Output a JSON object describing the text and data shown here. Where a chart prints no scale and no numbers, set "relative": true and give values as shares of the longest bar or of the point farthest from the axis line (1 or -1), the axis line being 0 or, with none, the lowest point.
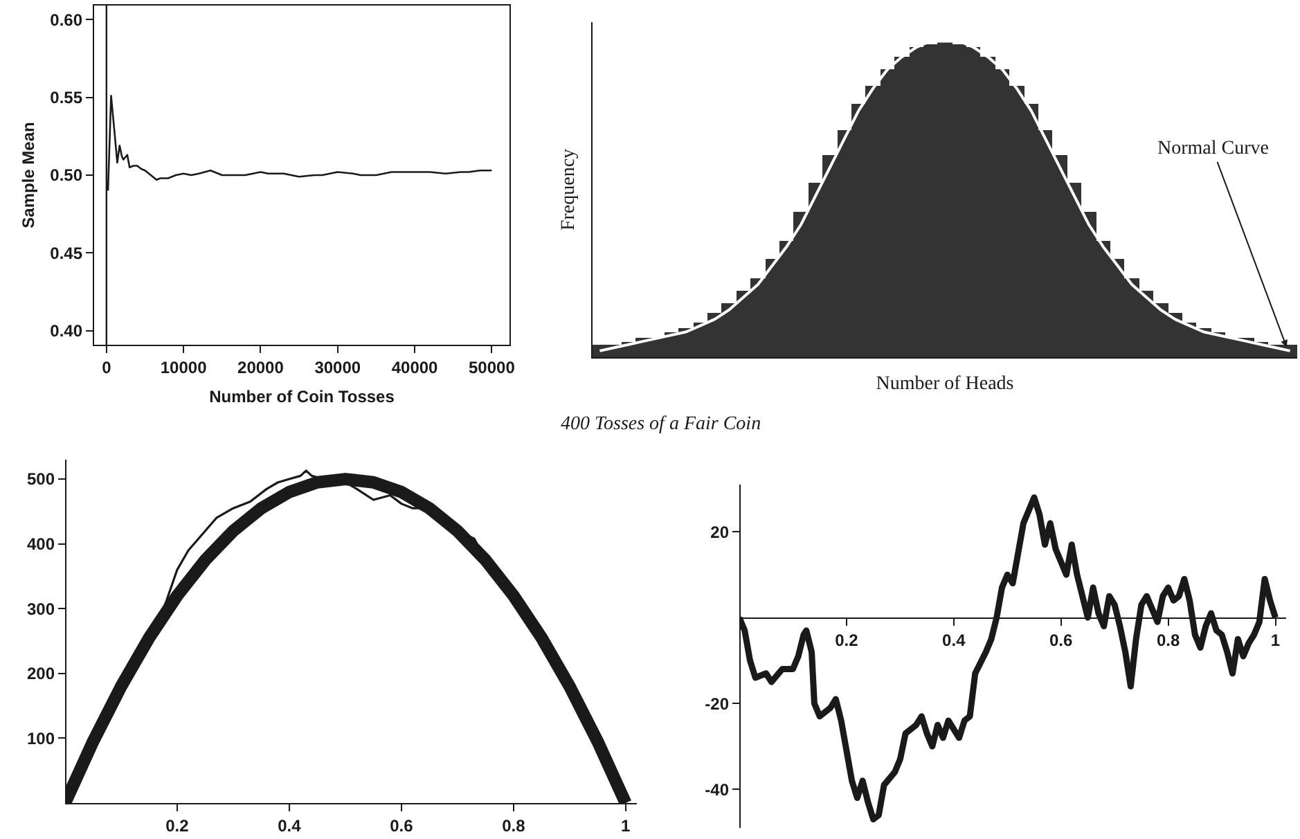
{
  "chart_data": [
    {
      "type": "line",
      "xlabel": "Number of Coin Tosses",
      "ylabel": "Sample Mean",
      "xlim": [
        -1600,
        52300
      ],
      "ylim": [
        0.391,
        0.609
      ],
      "xticks": [
        0,
        10000,
        20000,
        30000,
        40000,
        50000
      ],
      "yticks": [
        {
          "value": 0.4,
          "label": "0.40"
        },
        0.45,
        {
          "value": 0.5,
          "label": "0.50"
        },
        0.55,
        {
          "value": 0.6,
          "label": "0.60"
        }
      ],
      "ref_lines": [
        {
          "axis": "x",
          "value": 0,
          "color": "#1a1a1a"
        }
      ],
      "series": [
        {
          "color": "#1a1a1a",
          "x": [
            200,
            600,
            1000,
            1400,
            1700,
            2000,
            2200,
            2700,
            3000,
            3500,
            4000,
            4500,
            5000,
            5500,
            6500,
            7000,
            8000,
            9000,
            10000,
            11000,
            12000,
            13500,
            15000,
            16000,
            18000,
            20000,
            21000,
            23000,
            25000,
            27000,
            28000,
            30000,
            32000,
            33000,
            35000,
            37000,
            40000,
            42000,
            44000,
            46000,
            47000,
            48500,
            50000
          ],
          "values": [
            0.49,
            0.551,
            0.53,
            0.508,
            0.519,
            0.512,
            0.51,
            0.513,
            0.505,
            0.506,
            0.506,
            0.504,
            0.503,
            0.501,
            0.497,
            0.498,
            0.498,
            0.5,
            0.501,
            0.5,
            0.501,
            0.503,
            0.5,
            0.5,
            0.5,
            0.502,
            0.501,
            0.501,
            0.499,
            0.5,
            0.5,
            0.502,
            0.501,
            0.5,
            0.5,
            0.502,
            0.502,
            0.502,
            0.501,
            0.502,
            0.502,
            0.503,
            0.503
          ]
        }
      ]
    },
    {
      "type": "bar",
      "relative": true,
      "xlabel": "Number of Heads",
      "ylabel": "Frequency",
      "annotations": [
        "Normal Curve",
        "400 Tosses of a Fair Coin"
      ],
      "categories": [
        null,
        null,
        null,
        null,
        null,
        null,
        null,
        null,
        null,
        null,
        null,
        null,
        null,
        null,
        null,
        null,
        null,
        null,
        null,
        null,
        null,
        null,
        null,
        null,
        null,
        null,
        null,
        null,
        null,
        null,
        null,
        null,
        null,
        null,
        null,
        null,
        null,
        null,
        null,
        null,
        null,
        null,
        null,
        null,
        null,
        null,
        null,
        null,
        null
      ],
      "series": [
        {
          "color": "#333333",
          "values": [
            0.04,
            0.04,
            0.05,
            0.06,
            0.06,
            0.08,
            0.09,
            0.11,
            0.14,
            0.17,
            0.21,
            0.25,
            0.31,
            0.37,
            0.46,
            0.55,
            0.64,
            0.72,
            0.8,
            0.86,
            0.91,
            0.95,
            0.98,
            0.99,
            1,
            0.99,
            0.98,
            0.95,
            0.91,
            0.86,
            0.8,
            0.72,
            0.64,
            0.55,
            0.46,
            0.37,
            0.31,
            0.25,
            0.21,
            0.17,
            0.14,
            0.11,
            0.09,
            0.08,
            0.06,
            0.06,
            0.05,
            0.04,
            0.04
          ]
        }
      ]
    },
    {
      "type": "line",
      "relative": true,
      "categories": [
        null,
        null,
        null,
        null,
        null,
        null,
        null,
        null,
        null,
        null,
        null,
        null,
        null,
        null,
        null,
        null,
        null,
        null,
        null,
        null,
        null,
        null,
        null,
        null,
        null,
        null,
        null,
        null,
        null,
        null,
        null,
        null,
        null,
        null,
        null,
        null,
        null,
        null,
        null,
        null,
        null,
        null,
        null,
        null,
        null,
        null,
        null,
        null,
        null
      ],
      "series": [
        {
          "color": "#ffffff",
          "values": [
            0.02,
            0.03,
            0.04,
            0.05,
            0.06,
            0.07,
            0.08,
            0.1,
            0.12,
            0.15,
            0.19,
            0.23,
            0.29,
            0.35,
            0.42,
            0.51,
            0.6,
            0.69,
            0.78,
            0.85,
            0.91,
            0.95,
            0.98,
            1,
            1,
            1,
            0.98,
            0.95,
            0.91,
            0.85,
            0.78,
            0.69,
            0.6,
            0.51,
            0.42,
            0.35,
            0.29,
            0.23,
            0.19,
            0.15,
            0.12,
            0.1,
            0.08,
            0.07,
            0.06,
            0.05,
            0.04,
            0.03,
            0.02
          ]
        }
      ]
    },
    {
      "type": "line",
      "xlim": [
        0,
        1.02
      ],
      "ylim": [
        0,
        530
      ],
      "xticks": [
        0.2,
        0.4,
        0.6,
        0.8,
        1
      ],
      "yticks": [
        100,
        200,
        300,
        400,
        500
      ],
      "series": [
        {
          "color": "#1a1a1a",
          "x": [
            0,
            0.05,
            0.1,
            0.15,
            0.2,
            0.25,
            0.3,
            0.35,
            0.4,
            0.45,
            0.5,
            0.55,
            0.6,
            0.65,
            0.7,
            0.75,
            0.8,
            0.85,
            0.9,
            0.95,
            1
          ],
          "values": [
            0,
            95,
            180,
            255,
            320,
            375,
            420,
            455,
            480,
            495,
            500,
            495,
            480,
            455,
            420,
            375,
            320,
            255,
            180,
            95,
            0
          ]
        },
        {
          "color": "#1a1a1a",
          "x": [
            0,
            0.05,
            0.1,
            0.15,
            0.17,
            0.18,
            0.2,
            0.22,
            0.25,
            0.27,
            0.3,
            0.33,
            0.36,
            0.38,
            0.4,
            0.42,
            0.43,
            0.44,
            0.46,
            0.5,
            0.52,
            0.55,
            0.58,
            0.6,
            0.62,
            0.65,
            0.7,
            0.73,
            0.75,
            0.8,
            0.85,
            0.9,
            0.95,
            1
          ],
          "values": [
            0,
            95,
            180,
            255,
            290,
            310,
            360,
            390,
            420,
            440,
            455,
            465,
            485,
            495,
            500,
            505,
            513,
            505,
            500,
            495,
            485,
            468,
            475,
            462,
            455,
            455,
            420,
            408,
            375,
            320,
            255,
            180,
            95,
            0
          ]
        }
      ]
    },
    {
      "type": "line",
      "xlim": [
        0,
        1.02
      ],
      "ylim": [
        -49,
        31
      ],
      "xticks": [
        0.2,
        0.4,
        0.6,
        0.8,
        1
      ],
      "yticks": [
        -40,
        -20,
        20
      ],
      "series": [
        {
          "color": "#1a1a1a",
          "x": [
            0,
            0.01,
            0.02,
            0.03,
            0.05,
            0.06,
            0.08,
            0.1,
            0.11,
            0.12,
            0.125,
            0.135,
            0.14,
            0.15,
            0.17,
            0.18,
            0.19,
            0.2,
            0.21,
            0.22,
            0.23,
            0.24,
            0.25,
            0.26,
            0.27,
            0.29,
            0.3,
            0.31,
            0.33,
            0.34,
            0.35,
            0.36,
            0.37,
            0.38,
            0.39,
            0.41,
            0.42,
            0.43,
            0.44,
            0.46,
            0.47,
            0.48,
            0.49,
            0.5,
            0.51,
            0.52,
            0.53,
            0.54,
            0.55,
            0.56,
            0.57,
            0.58,
            0.59,
            0.6,
            0.61,
            0.62,
            0.63,
            0.64,
            0.65,
            0.66,
            0.67,
            0.68,
            0.69,
            0.7,
            0.71,
            0.72,
            0.73,
            0.74,
            0.75,
            0.76,
            0.77,
            0.78,
            0.79,
            0.8,
            0.81,
            0.82,
            0.83,
            0.84,
            0.85,
            0.86,
            0.87,
            0.88,
            0.89,
            0.9,
            0.91,
            0.92,
            0.93,
            0.94,
            0.95,
            0.96,
            0.97,
            0.98,
            0.99,
            1
          ],
          "values": [
            0,
            -3,
            -10,
            -14,
            -13,
            -15,
            -12,
            -12,
            -9,
            -4,
            -3,
            -8,
            -20,
            -23,
            -21,
            -19,
            -24,
            -31,
            -38,
            -42,
            -38,
            -43,
            -47,
            -46,
            -39,
            -36,
            -33,
            -27,
            -25,
            -23,
            -27,
            -30,
            -25,
            -28,
            -24,
            -28,
            -24,
            -23,
            -13,
            -8,
            -5,
            0,
            7,
            10,
            8,
            15,
            22,
            25,
            28,
            24,
            17,
            22,
            16,
            13,
            10,
            17,
            10,
            5,
            0,
            7,
            1,
            -2,
            5,
            3,
            -2,
            -8,
            -16,
            -5,
            3,
            5,
            2,
            -1,
            5,
            7,
            4,
            5,
            9,
            4,
            -4,
            -7,
            -2,
            1,
            -3,
            -4,
            -8,
            -13,
            -5,
            -9,
            -6,
            -4,
            -1,
            9,
            4,
            0
          ]
        }
      ]
    }
  ]
}
